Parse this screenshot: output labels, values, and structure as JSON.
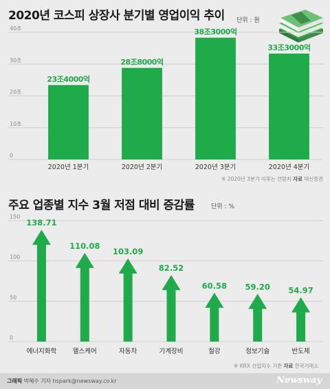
{
  "chart1": {
    "title": "2020년 코스피 상장사 분기별 영업이익 추이",
    "unit": "단위 : 원",
    "note_prefix": "※",
    "note": "2020년 3분기 이후는 전망치",
    "source_label": "자료",
    "source": "대신증권"
  },
  "chart2": {
    "title": "주요 업종별 지수 3월 저점 대비 증감률",
    "unit": "단위 : %",
    "note_prefix": "※",
    "note": "KRX 산업지수 기준",
    "source_label": "자료",
    "source": "한국거래소"
  },
  "footer": {
    "credit_label": "그래픽",
    "credit": "박혜수 기자 hspark@newsway.co.kr",
    "brand": "Newsway"
  },
  "colors": {
    "bar": "#1fab4a",
    "grid": "#cfcfcf",
    "label": "#1fab4a",
    "background": "#ececec"
  },
  "chart_data": [
    {
      "type": "bar",
      "title": "2020년 코스피 상장사 분기별 영업이익 추이",
      "ylabel": "단위 : 원",
      "categories": [
        "2020년 1분기",
        "2020년 2분기",
        "2020년 3분기",
        "2020년 4분기"
      ],
      "values": [
        23.4,
        28.8,
        38.3,
        33.3
      ],
      "value_labels": [
        "23조4000억",
        "28조8000억",
        "38조3000억",
        "33조3000억"
      ],
      "yticks": [
        "0",
        "10조",
        "20조",
        "30조",
        "40조"
      ],
      "ylim": [
        0,
        40
      ],
      "grid": true
    },
    {
      "type": "bar",
      "title": "주요 업종별 지수 3월 저점 대비 증감률",
      "ylabel": "단위 : %",
      "categories": [
        "에너지화학",
        "헬스케어",
        "자동차",
        "기계장비",
        "철강",
        "정보기술",
        "반도체"
      ],
      "values": [
        138.71,
        110.08,
        103.09,
        82.52,
        60.58,
        59.2,
        54.97
      ],
      "value_labels": [
        "138.71",
        "110.08",
        "103.09",
        "82.52",
        "60.58",
        "59.20",
        "54.97"
      ],
      "yticks": [
        "0",
        "50",
        "100",
        "150"
      ],
      "ylim": [
        0,
        150
      ],
      "grid": true,
      "mark": "arrow"
    }
  ]
}
